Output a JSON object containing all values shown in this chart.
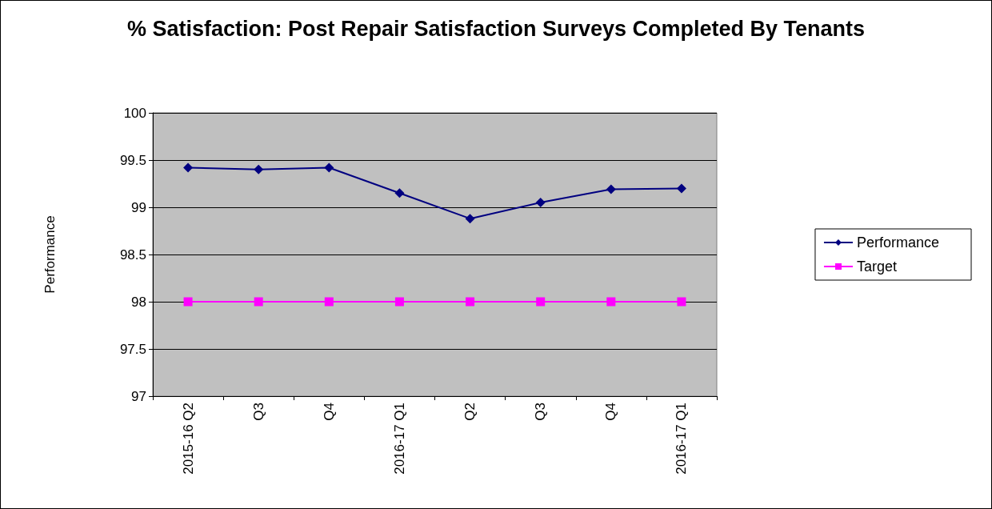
{
  "chart_data": {
    "type": "line",
    "title": "% Satisfaction: Post Repair Satisfaction Surveys Completed By Tenants",
    "ylabel": "Performance",
    "categories": [
      "2015-16 Q2",
      "Q3",
      "Q4",
      "2016-17 Q1",
      "Q2",
      "Q3",
      "Q4",
      "2016-17 Q1"
    ],
    "series": [
      {
        "name": "Performance",
        "color": "#000080",
        "marker": "diamond",
        "values": [
          99.42,
          99.4,
          99.42,
          99.15,
          98.88,
          99.05,
          99.19,
          99.2
        ]
      },
      {
        "name": "Target",
        "color": "#ff00ff",
        "marker": "square",
        "values": [
          98,
          98,
          98,
          98,
          98,
          98,
          98,
          98
        ]
      }
    ],
    "ylim": [
      97,
      100
    ],
    "yticks": [
      97,
      97.5,
      98,
      98.5,
      99,
      99.5,
      100
    ],
    "grid": "y",
    "legend": "right",
    "line_style": "solid"
  }
}
